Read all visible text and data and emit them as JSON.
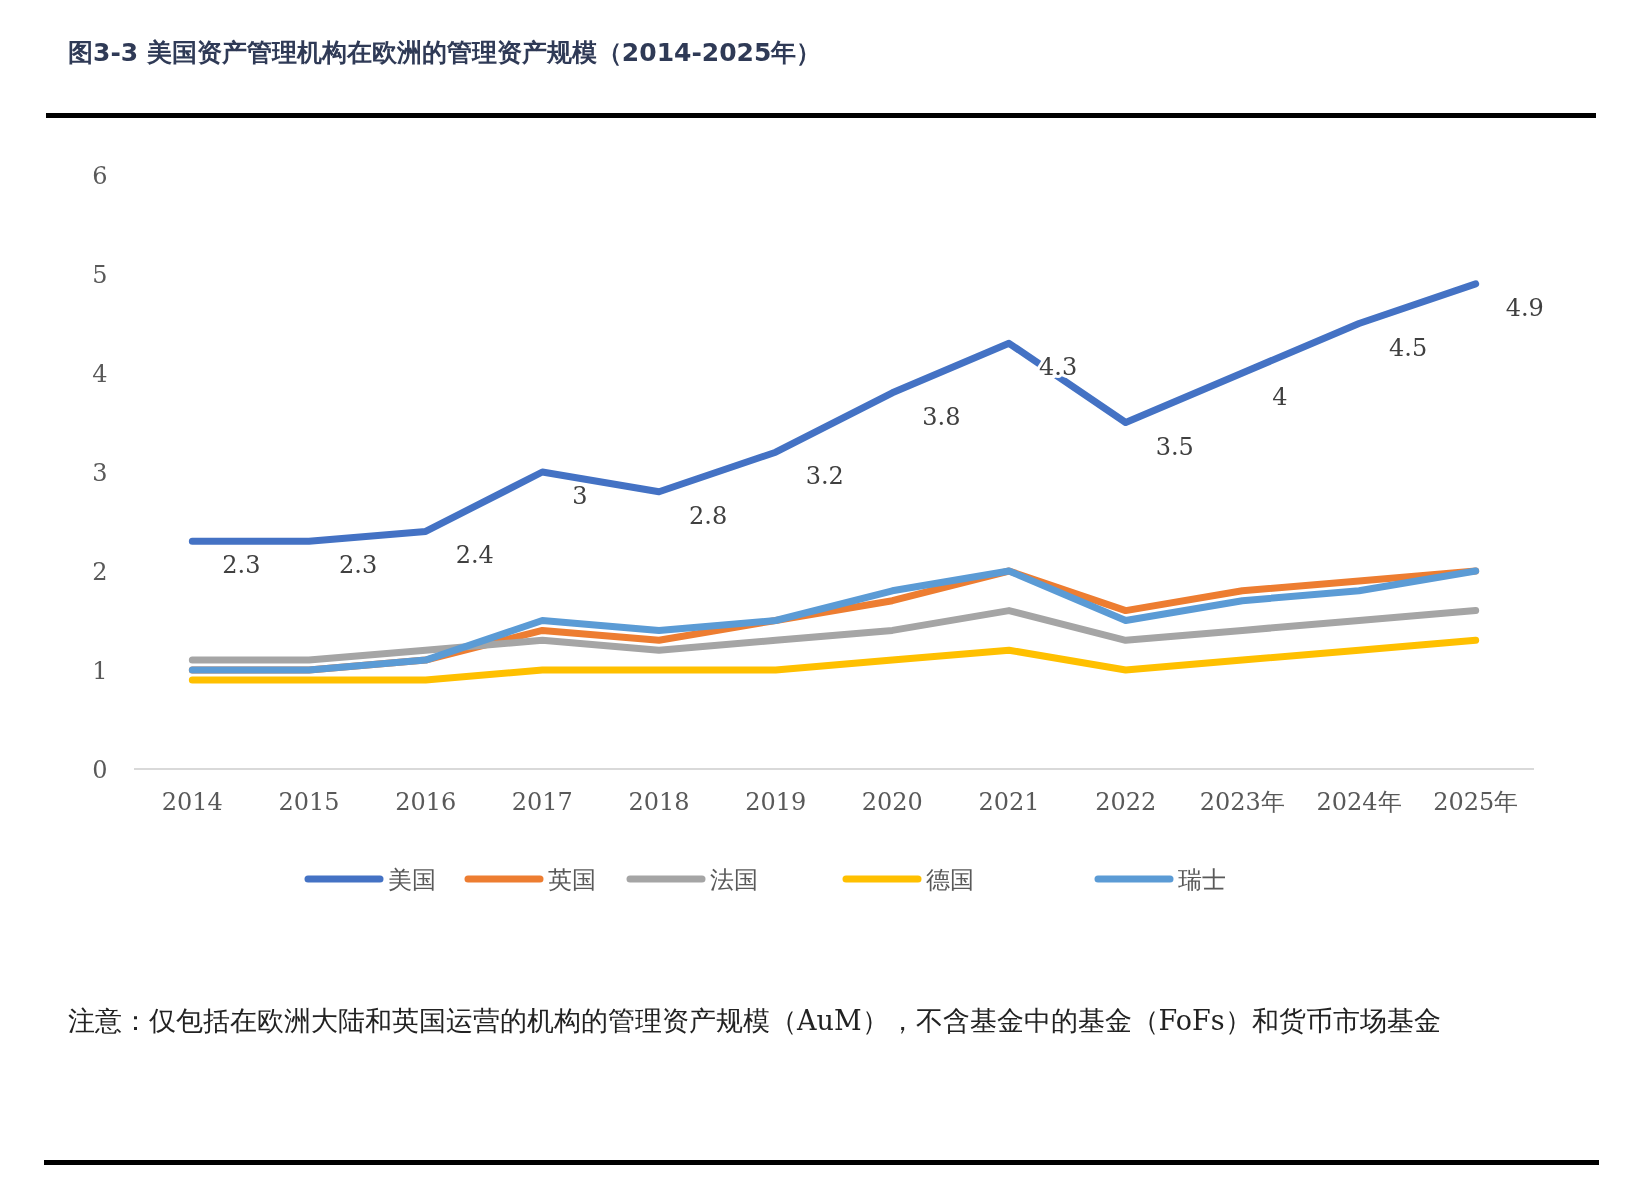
{
  "chart_data": {
    "type": "line",
    "title": "图3-3 美国资产管理机构在欧洲的管理资产规模（2014-2025年）",
    "categories": [
      "2014",
      "2015",
      "2016",
      "2017",
      "2018",
      "2019",
      "2020",
      "2021",
      "2022",
      "2023年",
      "2024年",
      "2025年"
    ],
    "series": [
      {
        "name": "美国",
        "color": "#4472c4",
        "values": [
          2.3,
          2.3,
          2.4,
          3,
          2.8,
          3.2,
          3.8,
          4.3,
          3.5,
          4,
          4.5,
          4.9
        ],
        "data_labels": true
      },
      {
        "name": "英国",
        "color": "#ed7d31",
        "values": [
          1.0,
          1.0,
          1.1,
          1.4,
          1.3,
          1.5,
          1.7,
          2.0,
          1.6,
          1.8,
          1.9,
          2.0
        ]
      },
      {
        "name": "法国",
        "color": "#a5a5a5",
        "values": [
          1.1,
          1.1,
          1.2,
          1.3,
          1.2,
          1.3,
          1.4,
          1.6,
          1.3,
          1.4,
          1.5,
          1.6
        ]
      },
      {
        "name": "德国",
        "color": "#ffc000",
        "values": [
          0.9,
          0.9,
          0.9,
          1.0,
          1.0,
          1.0,
          1.1,
          1.2,
          1.0,
          1.1,
          1.2,
          1.3
        ]
      },
      {
        "name": "瑞士",
        "color": "#5b9bd5",
        "values": [
          1.0,
          1.0,
          1.1,
          1.5,
          1.4,
          1.5,
          1.8,
          2.0,
          1.5,
          1.7,
          1.8,
          2.0
        ]
      }
    ],
    "ylim": [
      0,
      6
    ],
    "yticks": [
      0,
      1,
      2,
      3,
      4,
      5,
      6
    ],
    "grid": false,
    "legend": "bottom",
    "marker": "none",
    "line_style": "solid",
    "annotations": [
      "注意：仅包括在欧洲大陆和英国运营的机构的管理资产规模（AuM），不含基金中的基金（FoFs）和货币市场基金"
    ]
  }
}
